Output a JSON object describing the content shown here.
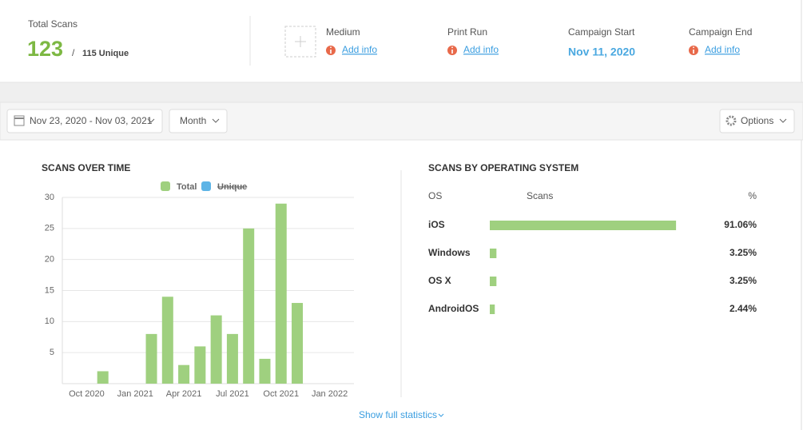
{
  "header": {
    "total_scans_label": "Total Scans",
    "total_scans": 123,
    "separator": "/",
    "unique_label": "115 Unique",
    "fields": [
      {
        "label": "Medium",
        "value": "Add info",
        "kind": "link"
      },
      {
        "label": "Print Run",
        "value": "Add info",
        "kind": "link"
      },
      {
        "label": "Campaign Start",
        "value": "Nov 11, 2020",
        "kind": "date"
      },
      {
        "label": "Campaign End",
        "value": "Add info",
        "kind": "link"
      }
    ]
  },
  "toolbar": {
    "date_range": "Nov 23, 2020 - Nov 03, 2021",
    "interval": "Month",
    "options": "Options"
  },
  "chart_data": {
    "type": "bar",
    "title": "SCANS OVER TIME",
    "categories": [
      null,
      "Oct 2020",
      null,
      null,
      "Jan 2021",
      null,
      null,
      "Apr 2021",
      null,
      null,
      "Jul 2021",
      null,
      null,
      "Oct 2021",
      null,
      null,
      "Jan 2022",
      null
    ],
    "series": [
      {
        "name": "Total",
        "color": "#9fd07f",
        "values": [
          null,
          null,
          2,
          0,
          0,
          8,
          14,
          3,
          6,
          11,
          8,
          25,
          4,
          29,
          13,
          null,
          null,
          null
        ]
      }
    ],
    "hidden_series": [
      {
        "name": "Unique",
        "color": "#5db4e6"
      }
    ],
    "ylim": [
      0,
      30
    ],
    "yticks": [
      5,
      10,
      15,
      20,
      25,
      30
    ],
    "grid": true
  },
  "os_table": {
    "title": "SCANS BY OPERATING SYSTEM",
    "columns": [
      "OS",
      "Scans",
      "%"
    ],
    "color": "#9fd07f",
    "rows": [
      {
        "os": "iOS",
        "percent": 91.06,
        "label": "91.06%"
      },
      {
        "os": "Windows",
        "percent": 3.25,
        "label": "3.25%"
      },
      {
        "os": "OS X",
        "percent": 3.25,
        "label": "3.25%"
      },
      {
        "os": "AndroidOS",
        "percent": 2.44,
        "label": "2.44%"
      }
    ]
  },
  "footer_link": "Show full statistics"
}
